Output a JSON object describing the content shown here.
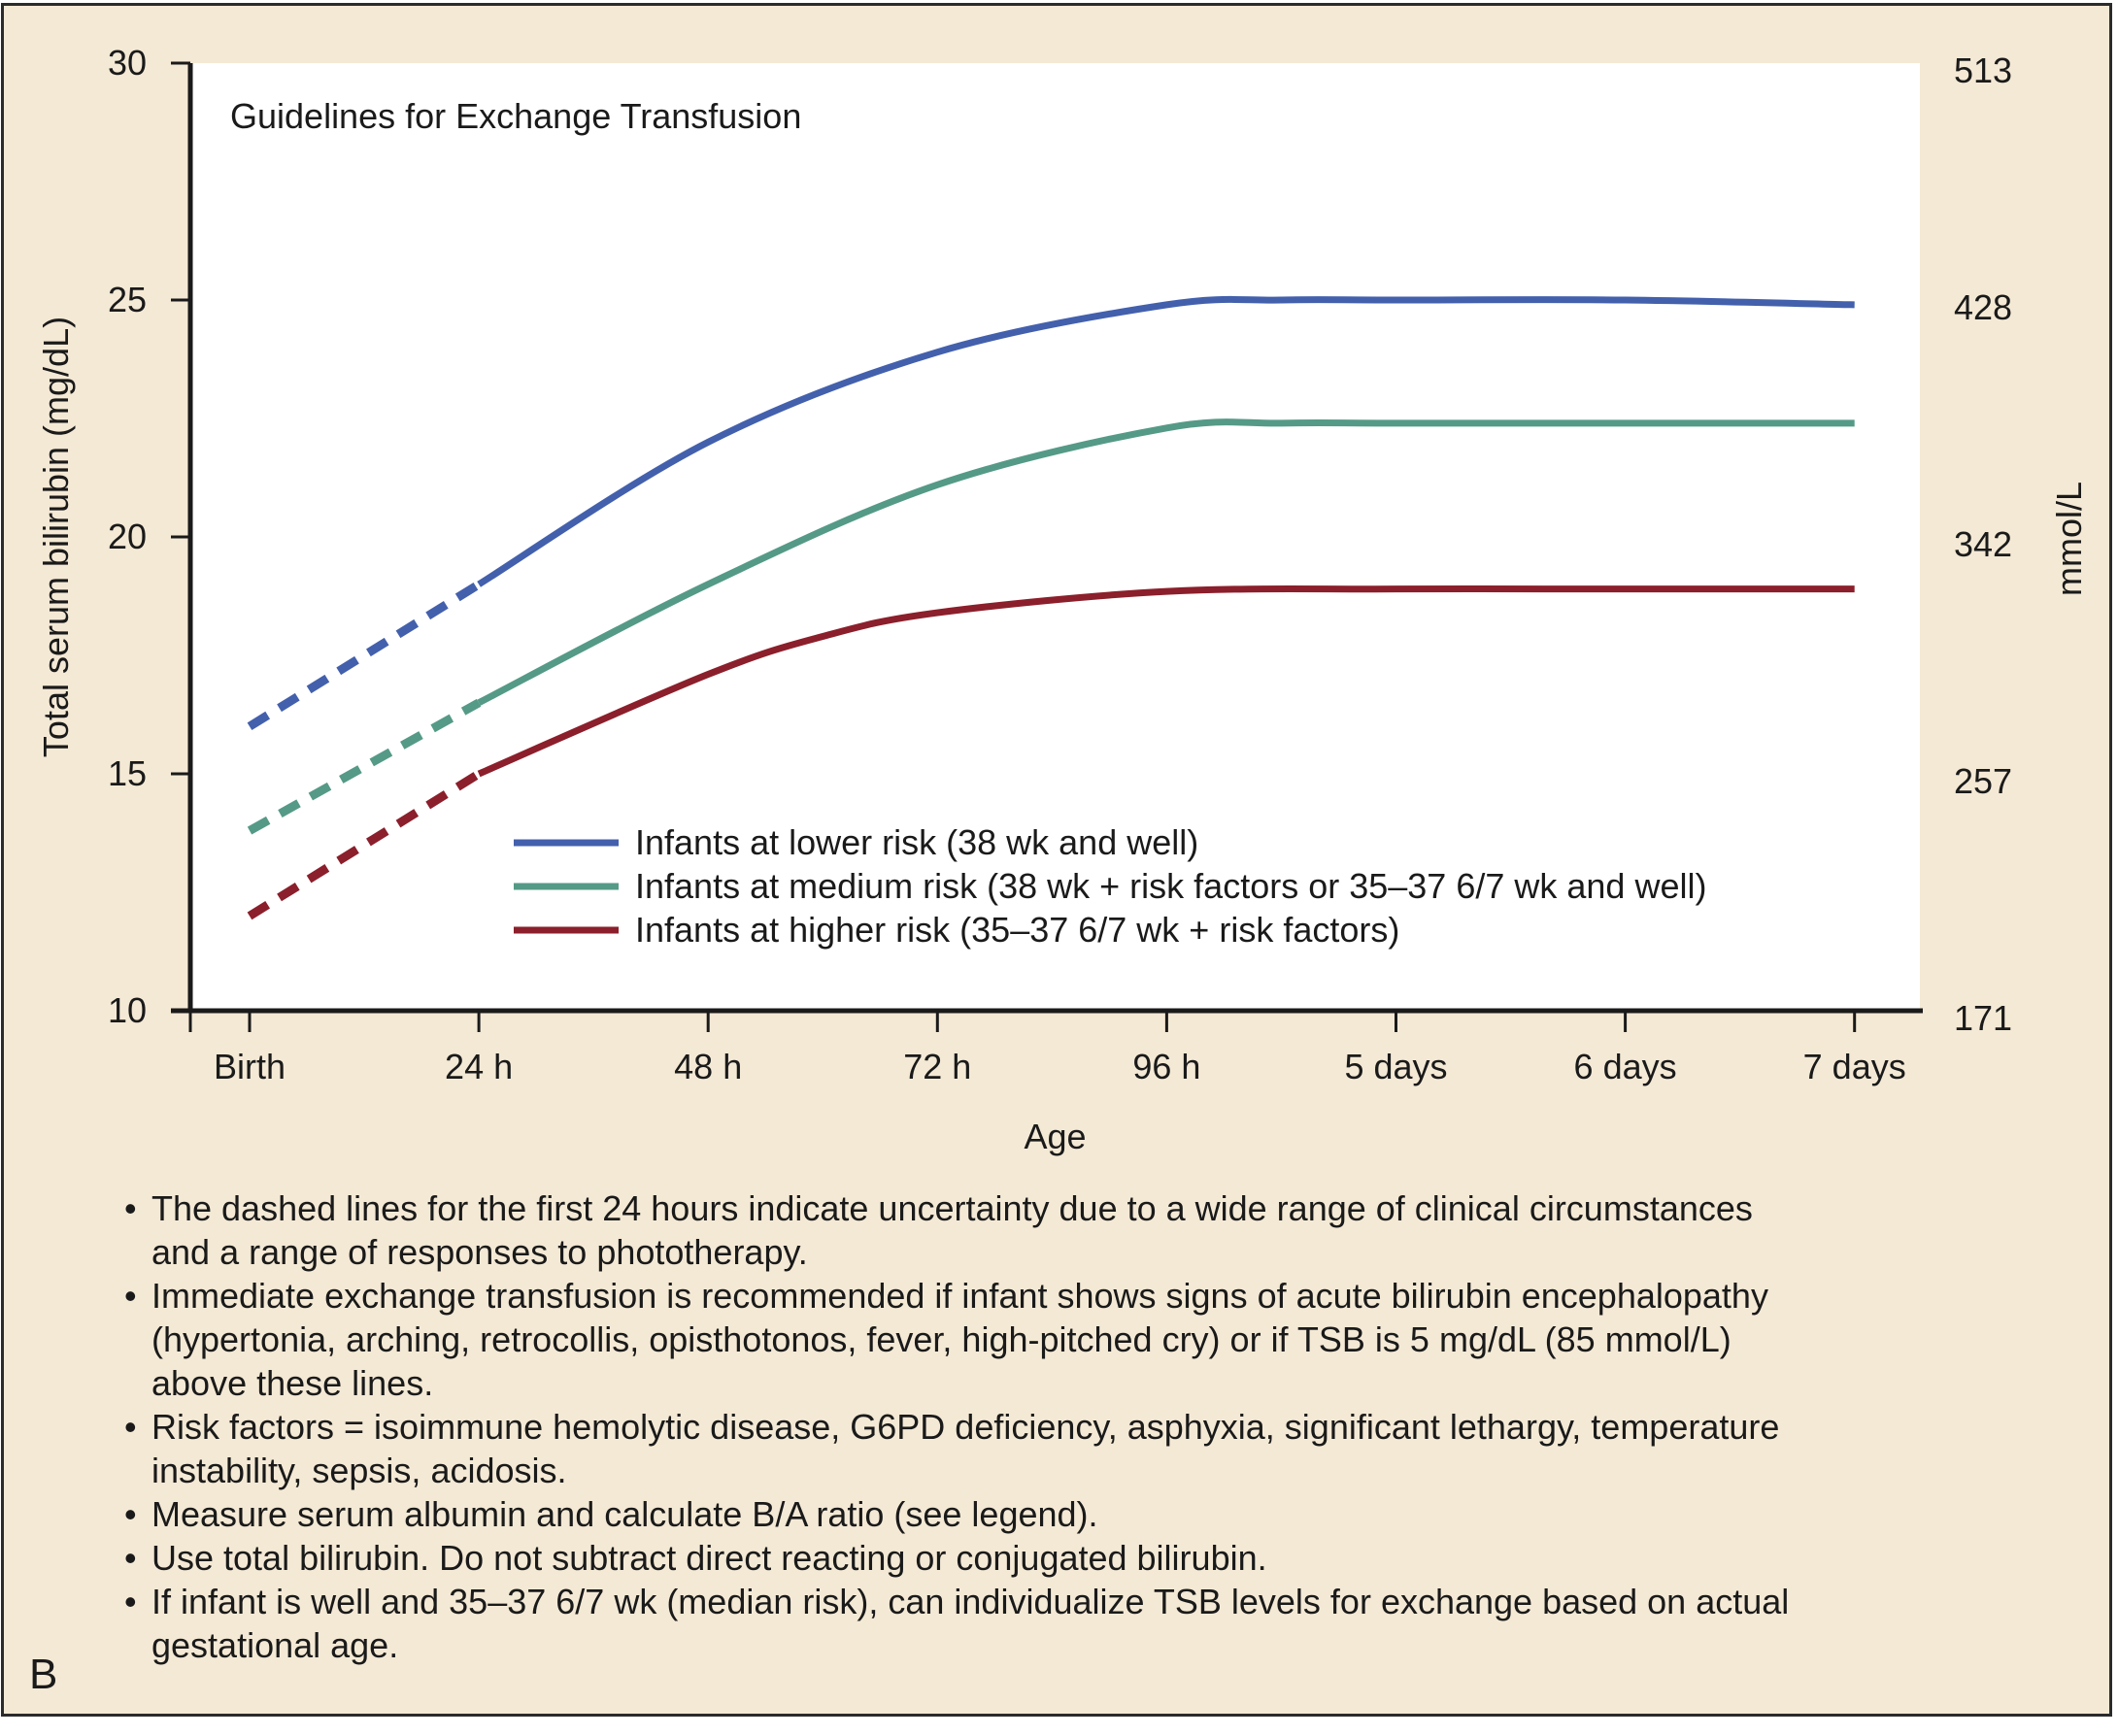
{
  "panel_letter": "B",
  "chart_data": {
    "type": "line",
    "title": "Guidelines for Exchange Transfusion",
    "xlabel": "Age",
    "ylabel": "Total serum bilirubin (mg/dL)",
    "ylabel_right": "mmol/L",
    "categories": [
      "Birth",
      "24 h",
      "48 h",
      "72 h",
      "96 h",
      "5 days",
      "6 days",
      "7 days"
    ],
    "x": [
      0,
      1,
      2,
      3,
      4,
      5,
      6,
      7
    ],
    "ylim": [
      10,
      30
    ],
    "yticks": [
      10,
      15,
      20,
      25,
      30
    ],
    "yticks_right": [
      "171",
      "257",
      "342",
      "428",
      "513"
    ],
    "grid": false,
    "legend_position": "lower-center",
    "dashed_until_x": 1,
    "series": [
      {
        "name": "Infants at lower risk (38 wk and well)",
        "color": "#4360ac",
        "x": [
          0,
          1,
          2,
          3,
          4,
          4.5,
          5,
          6,
          7
        ],
        "values": [
          16.0,
          19.0,
          22.0,
          23.9,
          24.9,
          25.0,
          25.0,
          25.0,
          24.9
        ]
      },
      {
        "name": "Infants at medium risk (38 wk + risk factors or 35–37 6/7 wk and well)",
        "color": "#559a86",
        "x": [
          0,
          1,
          2,
          3,
          4,
          4.5,
          5,
          6,
          7
        ],
        "values": [
          13.8,
          16.5,
          19.0,
          21.1,
          22.3,
          22.4,
          22.4,
          22.4,
          22.4
        ]
      },
      {
        "name": "Infants at higher risk (35–37 6/7 wk + risk factors)",
        "color": "#8b1f2b",
        "x": [
          0,
          1,
          2,
          2.5,
          3,
          4,
          5,
          6,
          7
        ],
        "values": [
          12.0,
          15.0,
          17.1,
          17.9,
          18.4,
          18.85,
          18.9,
          18.9,
          18.9
        ]
      }
    ]
  },
  "notes": [
    {
      "bullet": "•",
      "lines": [
        "The dashed lines for the first 24 hours indicate uncertainty due to a wide range of clinical circumstances",
        "and a range of responses to phototherapy."
      ]
    },
    {
      "bullet": "•",
      "lines": [
        "Immediate exchange transfusion is recommended if infant shows signs of acute bilirubin encephalopathy",
        "(hypertonia, arching, retrocollis, opisthotonos, fever, high-pitched cry) or if TSB is 5 mg/dL (85 mmol/L)",
        "above these lines."
      ]
    },
    {
      "bullet": "•",
      "lines": [
        "Risk factors = isoimmune hemolytic disease, G6PD deficiency, asphyxia, significant lethargy, temperature",
        "instability, sepsis, acidosis."
      ]
    },
    {
      "bullet": "•",
      "lines": [
        "Measure serum albumin and calculate B/A ratio (see legend)."
      ]
    },
    {
      "bullet": "•",
      "lines": [
        "Use total bilirubin.  Do not subtract direct reacting or conjugated bilirubin."
      ]
    },
    {
      "bullet": "•",
      "lines": [
        "If infant is well and 35–37 6/7 wk (median risk), can individualize TSB levels for exchange based on actual",
        "gestational age."
      ]
    }
  ]
}
